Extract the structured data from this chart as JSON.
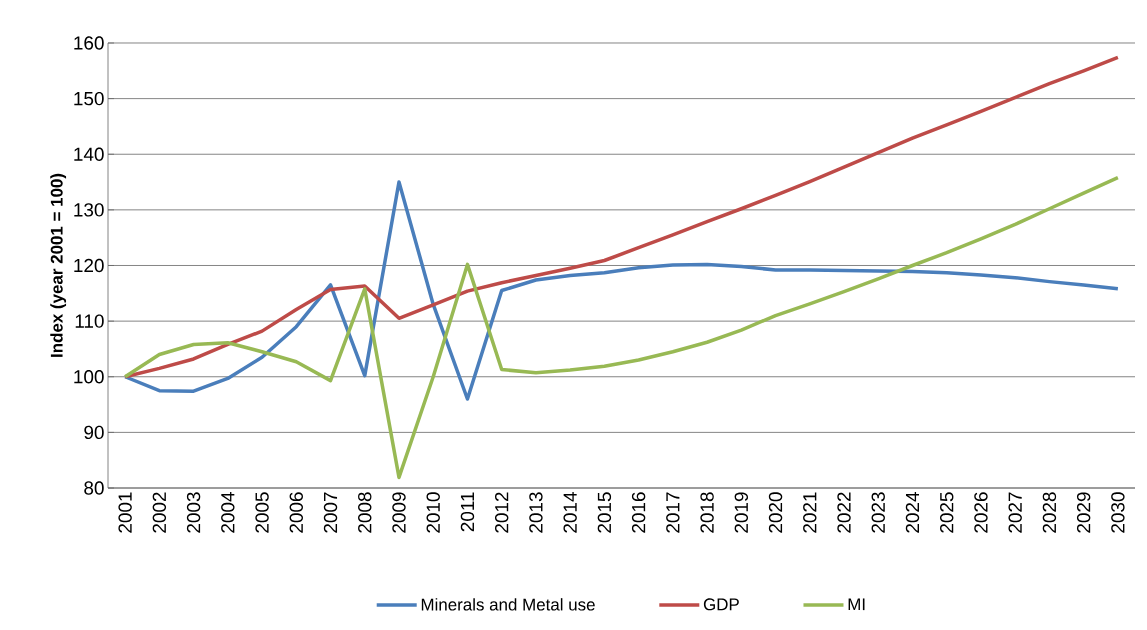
{
  "chart_data": {
    "type": "line",
    "ylabel": "Index (year 2001 = 100)",
    "categories": [
      "2001",
      "2002",
      "2003",
      "2004",
      "2005",
      "2006",
      "2007",
      "2008",
      "2009",
      "2010",
      "2011",
      "2012",
      "2013",
      "2014",
      "2015",
      "2016",
      "2017",
      "2018",
      "2019",
      "2020",
      "2021",
      "2022",
      "2023",
      "2024",
      "2025",
      "2026",
      "2027",
      "2028",
      "2029",
      "2030"
    ],
    "series": [
      {
        "name": "Minerals and Metal use",
        "color": "#4a7ebb",
        "values": [
          100,
          97.5,
          97.4,
          99.7,
          103.5,
          109,
          116.5,
          100.2,
          135,
          113,
          96,
          115.5,
          117.4,
          118.2,
          118.7,
          119.6,
          120.1,
          120.2,
          119.8,
          119.2,
          119.2,
          119.1,
          119,
          118.9,
          118.7,
          118.3,
          117.8,
          117.1,
          116.5,
          115.8
        ]
      },
      {
        "name": "GDP",
        "color": "#be4b48",
        "values": [
          100,
          101.5,
          103.2,
          105.8,
          108.2,
          112.1,
          115.7,
          116.3,
          110.5,
          112.9,
          115.4,
          116.9,
          118.2,
          119.5,
          120.9,
          123.2,
          125.5,
          127.9,
          130.2,
          132.6,
          135.1,
          137.7,
          140.3,
          142.9,
          145.3,
          147.7,
          150.2,
          152.7,
          155,
          157.4
        ]
      },
      {
        "name": "MI",
        "color": "#98b954",
        "values": [
          100,
          104,
          105.8,
          106.1,
          104.5,
          102.7,
          99.3,
          115.8,
          81.9,
          100,
          120.2,
          101.3,
          100.7,
          101.2,
          101.9,
          103,
          104.5,
          106.2,
          108.4,
          111,
          113.1,
          115.3,
          117.6,
          120,
          122.3,
          124.8,
          127.4,
          130.2,
          133,
          135.8
        ]
      }
    ],
    "ylim": [
      80,
      160
    ],
    "yticks": [
      80,
      90,
      100,
      110,
      120,
      130,
      140,
      150,
      160
    ],
    "grid": "y",
    "legend": "bottom"
  }
}
